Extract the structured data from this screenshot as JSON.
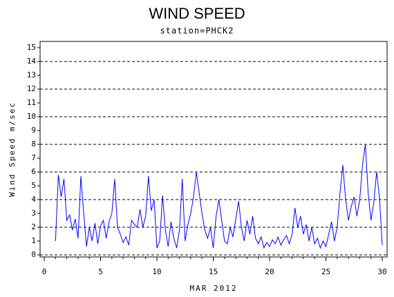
{
  "chart_data": {
    "type": "line",
    "title": "WIND SPEED",
    "subtitle": "station=PHCK2",
    "y_label": "Wind Speed m/sec",
    "x_label": "MAR 2012",
    "x": [
      1,
      1.25,
      1.5,
      1.75,
      2,
      2.25,
      2.5,
      2.75,
      3,
      3.25,
      3.5,
      3.75,
      4,
      4.25,
      4.5,
      4.75,
      5,
      5.25,
      5.5,
      5.75,
      6,
      6.25,
      6.5,
      6.75,
      7,
      7.25,
      7.5,
      7.75,
      8,
      8.25,
      8.5,
      8.75,
      9,
      9.25,
      9.5,
      9.75,
      10,
      10.25,
      10.5,
      10.75,
      11,
      11.25,
      11.5,
      11.75,
      12,
      12.25,
      12.5,
      12.75,
      13,
      13.25,
      13.5,
      13.75,
      14,
      14.25,
      14.5,
      14.75,
      15,
      15.25,
      15.5,
      15.75,
      16,
      16.25,
      16.5,
      16.75,
      17,
      17.25,
      17.5,
      17.75,
      18,
      18.25,
      18.5,
      18.75,
      19,
      19.25,
      19.5,
      19.75,
      20,
      20.25,
      20.5,
      20.75,
      21,
      21.25,
      21.5,
      21.75,
      22,
      22.25,
      22.5,
      22.75,
      23,
      23.25,
      23.5,
      23.75,
      24,
      24.25,
      24.5,
      24.75,
      25,
      25.25,
      25.5,
      25.75,
      26,
      26.25,
      26.5,
      26.75,
      27,
      27.25,
      27.5,
      27.75,
      28,
      28.25,
      28.5,
      28.75,
      29,
      29.25,
      29.5,
      29.75,
      30
    ],
    "series": [
      {
        "name": "Wind Speed",
        "color": "#0000ff",
        "values": [
          1.0,
          5.8,
          4.2,
          5.5,
          2.5,
          2.9,
          1.8,
          2.6,
          1.2,
          5.7,
          3.0,
          0.6,
          2.0,
          1.0,
          2.3,
          0.8,
          2.1,
          2.5,
          1.2,
          2.4,
          3.0,
          5.5,
          2.0,
          1.5,
          0.9,
          1.3,
          0.7,
          2.5,
          2.2,
          2.0,
          3.3,
          2.0,
          2.8,
          5.7,
          3.2,
          4.0,
          0.5,
          1.0,
          4.3,
          1.8,
          0.6,
          2.4,
          1.2,
          0.5,
          1.8,
          5.5,
          1.0,
          2.2,
          3.0,
          4.2,
          6.0,
          4.5,
          3.0,
          1.8,
          1.2,
          2.0,
          0.5,
          2.8,
          4.0,
          2.5,
          1.0,
          0.8,
          2.0,
          1.3,
          2.6,
          3.9,
          2.0,
          1.0,
          2.5,
          1.5,
          2.8,
          1.2,
          0.8,
          1.3,
          0.5,
          0.9,
          0.6,
          1.1,
          0.8,
          1.3,
          0.7,
          1.1,
          1.4,
          0.8,
          1.5,
          3.4,
          2.0,
          2.8,
          1.5,
          2.2,
          1.0,
          2.0,
          0.8,
          1.2,
          0.5,
          1.0,
          0.6,
          1.5,
          2.4,
          1.0,
          2.0,
          4.5,
          6.5,
          4.0,
          2.5,
          3.5,
          4.2,
          2.8,
          4.0,
          6.5,
          8.0,
          4.5,
          2.5,
          3.8,
          6.0,
          4.2,
          0.7
        ]
      }
    ],
    "xlim": [
      -0.37,
      30.43
    ],
    "ylim": [
      -0.15,
      15.45
    ],
    "xticks": [
      0,
      5,
      10,
      15,
      20,
      25,
      30
    ],
    "xminorticks": [
      0,
      1,
      2,
      3,
      4,
      5,
      6,
      7,
      8,
      9,
      10,
      11,
      12,
      13,
      14,
      15,
      16,
      17,
      18,
      19,
      20,
      21,
      22,
      23,
      24,
      25,
      26,
      27,
      28,
      29,
      30
    ],
    "yticks": [
      0,
      1,
      2,
      3,
      4,
      5,
      6,
      7,
      8,
      9,
      10,
      11,
      12,
      13,
      14,
      15
    ],
    "grid_values": [
      0,
      2,
      4,
      6,
      8,
      10,
      12,
      14
    ]
  }
}
